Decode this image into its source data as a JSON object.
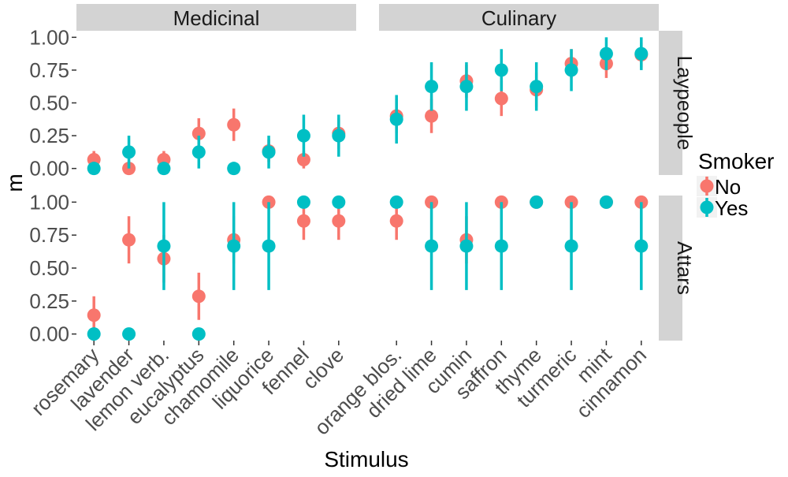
{
  "chart_data": {
    "type": "scatter",
    "title": "",
    "xlabel": "Stimulus",
    "ylabel": "m",
    "ylim": [
      0,
      1
    ],
    "y_ticks": [
      "0.00",
      "0.25",
      "0.50",
      "0.75",
      "1.00"
    ],
    "grid": false,
    "facet_columns": [
      "Medicinal",
      "Culinary"
    ],
    "facet_rows": [
      "Laypeople",
      "Attars"
    ],
    "categories": {
      "Medicinal": [
        "rosemary",
        "lavender",
        "lemon verb.",
        "eucalyptus",
        "chamomile",
        "liquorice",
        "fennel",
        "clove"
      ],
      "Culinary": [
        "orange blos.",
        "dried lime",
        "cumin",
        "saffron",
        "thyme",
        "turmeric",
        "mint",
        "cinnamon"
      ]
    },
    "legend": {
      "title": "Smoker",
      "position": "right",
      "entries": [
        {
          "label": "No",
          "color": "#F8766D"
        },
        {
          "label": "Yes",
          "color": "#00BFC4"
        }
      ]
    },
    "series": [
      {
        "name": "No",
        "color": "#F8766D",
        "panels": {
          "Laypeople|Medicinal": [
            {
              "mean": 0.067,
              "low": 0.0,
              "high": 0.133
            },
            {
              "mean": 0.0,
              "low": 0.0,
              "high": 0.0
            },
            {
              "mean": 0.067,
              "low": 0.0,
              "high": 0.133
            },
            {
              "mean": 0.267,
              "low": 0.15,
              "high": 0.383
            },
            {
              "mean": 0.333,
              "low": 0.21,
              "high": 0.457
            },
            {
              "mean": 0.133,
              "low": 0.05,
              "high": 0.22
            },
            {
              "mean": 0.067,
              "low": 0.0,
              "high": 0.133
            },
            {
              "mean": 0.267,
              "low": 0.15,
              "high": 0.383
            }
          ],
          "Laypeople|Culinary": [
            {
              "mean": 0.4,
              "low": 0.27,
              "high": 0.53
            },
            {
              "mean": 0.4,
              "low": 0.27,
              "high": 0.53
            },
            {
              "mean": 0.667,
              "low": 0.54,
              "high": 0.79
            },
            {
              "mean": 0.533,
              "low": 0.4,
              "high": 0.67
            },
            {
              "mean": 0.6,
              "low": 0.47,
              "high": 0.73
            },
            {
              "mean": 0.8,
              "low": 0.69,
              "high": 0.91
            },
            {
              "mean": 0.8,
              "low": 0.69,
              "high": 0.91
            },
            {
              "mean": 0.867,
              "low": 0.77,
              "high": 0.96
            }
          ],
          "Attars|Medicinal": [
            {
              "mean": 0.143,
              "low": 0.0,
              "high": 0.286
            },
            {
              "mean": 0.714,
              "low": 0.535,
              "high": 0.893
            },
            {
              "mean": 0.571,
              "low": 0.39,
              "high": 0.75
            },
            {
              "mean": 0.286,
              "low": 0.107,
              "high": 0.465
            },
            {
              "mean": 0.714,
              "low": 0.535,
              "high": 0.893
            },
            {
              "mean": 1.0,
              "low": 1.0,
              "high": 1.0
            },
            {
              "mean": 0.857,
              "low": 0.714,
              "high": 1.0
            },
            {
              "mean": 0.857,
              "low": 0.714,
              "high": 1.0
            }
          ],
          "Attars|Culinary": [
            {
              "mean": 0.857,
              "low": 0.714,
              "high": 1.0
            },
            {
              "mean": 1.0,
              "low": 1.0,
              "high": 1.0
            },
            {
              "mean": 0.714,
              "low": 0.535,
              "high": 0.893
            },
            {
              "mean": 1.0,
              "low": 1.0,
              "high": 1.0
            },
            {
              "mean": 1.0,
              "low": 1.0,
              "high": 1.0
            },
            {
              "mean": 1.0,
              "low": 1.0,
              "high": 1.0
            },
            {
              "mean": 1.0,
              "low": 1.0,
              "high": 1.0
            },
            {
              "mean": 1.0,
              "low": 1.0,
              "high": 1.0
            }
          ]
        }
      },
      {
        "name": "Yes",
        "color": "#00BFC4",
        "panels": {
          "Laypeople|Medicinal": [
            {
              "mean": 0.0,
              "low": 0.0,
              "high": 0.0
            },
            {
              "mean": 0.125,
              "low": 0.0,
              "high": 0.25
            },
            {
              "mean": 0.0,
              "low": 0.0,
              "high": 0.0
            },
            {
              "mean": 0.125,
              "low": 0.0,
              "high": 0.25
            },
            {
              "mean": 0.0,
              "low": 0.0,
              "high": 0.0
            },
            {
              "mean": 0.125,
              "low": 0.0,
              "high": 0.25
            },
            {
              "mean": 0.25,
              "low": 0.09,
              "high": 0.41
            },
            {
              "mean": 0.25,
              "low": 0.09,
              "high": 0.41
            }
          ],
          "Laypeople|Culinary": [
            {
              "mean": 0.375,
              "low": 0.19,
              "high": 0.56
            },
            {
              "mean": 0.625,
              "low": 0.44,
              "high": 0.81
            },
            {
              "mean": 0.625,
              "low": 0.44,
              "high": 0.81
            },
            {
              "mean": 0.75,
              "low": 0.59,
              "high": 0.91
            },
            {
              "mean": 0.625,
              "low": 0.44,
              "high": 0.81
            },
            {
              "mean": 0.75,
              "low": 0.59,
              "high": 0.91
            },
            {
              "mean": 0.875,
              "low": 0.75,
              "high": 1.0
            },
            {
              "mean": 0.875,
              "low": 0.75,
              "high": 1.0
            }
          ],
          "Attars|Medicinal": [
            {
              "mean": 0.0,
              "low": 0.0,
              "high": 0.0
            },
            {
              "mean": 0.0,
              "low": 0.0,
              "high": 0.0
            },
            {
              "mean": 0.667,
              "low": 0.333,
              "high": 1.0
            },
            {
              "mean": 0.0,
              "low": 0.0,
              "high": 0.0
            },
            {
              "mean": 0.667,
              "low": 0.333,
              "high": 1.0
            },
            {
              "mean": 0.667,
              "low": 0.333,
              "high": 1.0
            },
            {
              "mean": 1.0,
              "low": 1.0,
              "high": 1.0
            },
            {
              "mean": 1.0,
              "low": 1.0,
              "high": 1.0
            }
          ],
          "Attars|Culinary": [
            {
              "mean": 1.0,
              "low": 1.0,
              "high": 1.0
            },
            {
              "mean": 0.667,
              "low": 0.333,
              "high": 1.0
            },
            {
              "mean": 0.667,
              "low": 0.333,
              "high": 1.0
            },
            {
              "mean": 0.667,
              "low": 0.333,
              "high": 1.0
            },
            {
              "mean": 1.0,
              "low": 1.0,
              "high": 1.0
            },
            {
              "mean": 0.667,
              "low": 0.333,
              "high": 1.0
            },
            {
              "mean": 1.0,
              "low": 1.0,
              "high": 1.0
            },
            {
              "mean": 0.667,
              "low": 0.333,
              "high": 1.0
            }
          ]
        }
      }
    ]
  }
}
